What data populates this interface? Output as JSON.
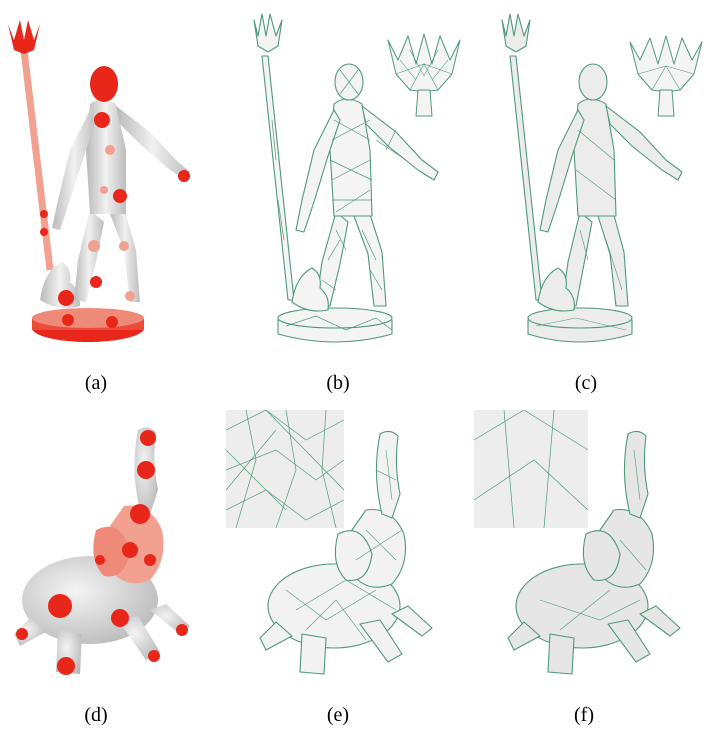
{
  "figure": {
    "captions": [
      "(a)",
      "(b)",
      "(c)",
      "(d)",
      "(e)",
      "(f)"
    ],
    "colors": {
      "heat_red": "#e8261a",
      "heat_pink": "#f2a08f",
      "surface_gray": "#d9d9d9",
      "mesh_green": "#4f9a78",
      "mesh_fill": "#f4f4f4"
    },
    "panels": [
      {
        "id": "a",
        "subject": "neptune-statue",
        "style": "saliency-heatmap"
      },
      {
        "id": "b",
        "subject": "neptune-statue",
        "style": "wireframe-mesh-with-inset"
      },
      {
        "id": "c",
        "subject": "neptune-statue",
        "style": "wireframe-mesh-with-inset"
      },
      {
        "id": "d",
        "subject": "elephant-statue",
        "style": "saliency-heatmap"
      },
      {
        "id": "e",
        "subject": "elephant-statue",
        "style": "wireframe-mesh-with-inset"
      },
      {
        "id": "f",
        "subject": "elephant-statue",
        "style": "wireframe-mesh-with-inset"
      }
    ]
  }
}
